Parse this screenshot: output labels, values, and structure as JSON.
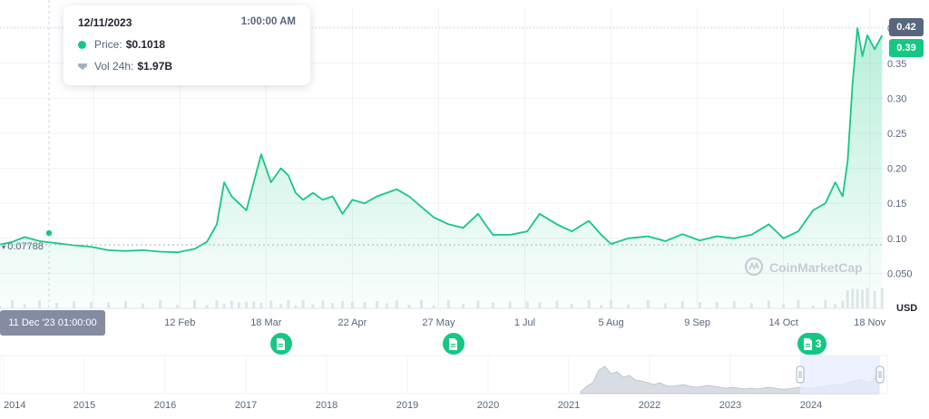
{
  "tooltip": {
    "date": "12/11/2023",
    "time": "1:00:00 AM",
    "price_label": "Price:",
    "price_value": "$0.1018",
    "vol_label": "Vol 24h:",
    "vol_value": "$1.97B"
  },
  "start_price_label": "0.07788",
  "current_price_tag": "0.39",
  "high_price_tag": "0.42",
  "crosshair_date": "11 Dec '23 01:00:00",
  "currency_label": "USD",
  "watermark": "CoinMarketCap",
  "news_markers": [
    {
      "date": "2024-03-24",
      "count": ""
    },
    {
      "date": "2024-06-02",
      "count": ""
    },
    {
      "date": "2024-10-24",
      "count": "3"
    }
  ],
  "colors": {
    "line": "#16c784",
    "fill_top": "#16c784",
    "grid": "#eff2f5",
    "axis_text": "#58667e",
    "tag_dark": "#58667e",
    "tag_green": "#16c784",
    "navigator_fill": "#d8dce4",
    "navigator_window": "#e8ecff"
  },
  "chart_data": {
    "type": "area",
    "ylabel": "USD",
    "ytick_labels": [
      "0.050",
      "0.10",
      "0.15",
      "0.20",
      "0.25",
      "0.30",
      "0.35",
      "0.40"
    ],
    "yticks": [
      0.05,
      0.1,
      0.15,
      0.2,
      0.25,
      0.3,
      0.35,
      0.4
    ],
    "ylim": [
      0.0,
      0.43
    ],
    "xlim": [
      "2023-12-01",
      "2024-11-24"
    ],
    "xtick_labels": [
      "8 Jan",
      "12 Feb",
      "18 Mar",
      "22 Apr",
      "27 May",
      "1 Jul",
      "5 Aug",
      "9 Sep",
      "14 Oct",
      "18 Nov"
    ],
    "xticks": [
      "2024-01-08",
      "2024-02-12",
      "2024-03-18",
      "2024-04-22",
      "2024-05-27",
      "2024-07-01",
      "2024-08-05",
      "2024-09-09",
      "2024-10-14",
      "2024-11-18"
    ],
    "grid": true,
    "series": [
      {
        "x": [
          "2023-12-01",
          "2023-12-06",
          "2023-12-11",
          "2023-12-17",
          "2023-12-24",
          "2023-12-31",
          "2024-01-07",
          "2024-01-14",
          "2024-01-21",
          "2024-01-28",
          "2024-02-04",
          "2024-02-11",
          "2024-02-18",
          "2024-02-23",
          "2024-02-27",
          "2024-03-01",
          "2024-03-04",
          "2024-03-07",
          "2024-03-10",
          "2024-03-13",
          "2024-03-16",
          "2024-03-20",
          "2024-03-24",
          "2024-03-27",
          "2024-03-30",
          "2024-04-02",
          "2024-04-06",
          "2024-04-10",
          "2024-04-14",
          "2024-04-18",
          "2024-04-22",
          "2024-04-27",
          "2024-05-02",
          "2024-05-06",
          "2024-05-10",
          "2024-05-15",
          "2024-05-20",
          "2024-05-25",
          "2024-05-31",
          "2024-06-06",
          "2024-06-12",
          "2024-06-18",
          "2024-06-25",
          "2024-07-02",
          "2024-07-07",
          "2024-07-14",
          "2024-07-20",
          "2024-07-27",
          "2024-08-01",
          "2024-08-05",
          "2024-08-12",
          "2024-08-20",
          "2024-08-27",
          "2024-09-03",
          "2024-09-10",
          "2024-09-17",
          "2024-09-24",
          "2024-10-01",
          "2024-10-08",
          "2024-10-14",
          "2024-10-20",
          "2024-10-26",
          "2024-10-31",
          "2024-11-04",
          "2024-11-07",
          "2024-11-09",
          "2024-11-11",
          "2024-11-13",
          "2024-11-15",
          "2024-11-17",
          "2024-11-20",
          "2024-11-23"
        ],
        "y": [
          0.091,
          0.095,
          0.1018,
          0.096,
          0.093,
          0.09,
          0.088,
          0.083,
          0.082,
          0.083,
          0.081,
          0.08,
          0.085,
          0.095,
          0.12,
          0.18,
          0.16,
          0.15,
          0.14,
          0.18,
          0.22,
          0.18,
          0.2,
          0.19,
          0.165,
          0.155,
          0.165,
          0.155,
          0.16,
          0.135,
          0.155,
          0.15,
          0.16,
          0.165,
          0.17,
          0.16,
          0.145,
          0.13,
          0.12,
          0.115,
          0.135,
          0.105,
          0.105,
          0.11,
          0.135,
          0.12,
          0.11,
          0.125,
          0.105,
          0.092,
          0.1,
          0.103,
          0.096,
          0.106,
          0.097,
          0.103,
          0.1,
          0.105,
          0.12,
          0.1,
          0.11,
          0.14,
          0.15,
          0.18,
          0.16,
          0.21,
          0.32,
          0.4,
          0.36,
          0.39,
          0.37,
          0.39
        ]
      }
    ]
  },
  "navigator": {
    "year_labels": [
      "2014",
      "2015",
      "2016",
      "2017",
      "2018",
      "2019",
      "2020",
      "2021",
      "2022",
      "2023",
      "2024"
    ]
  }
}
